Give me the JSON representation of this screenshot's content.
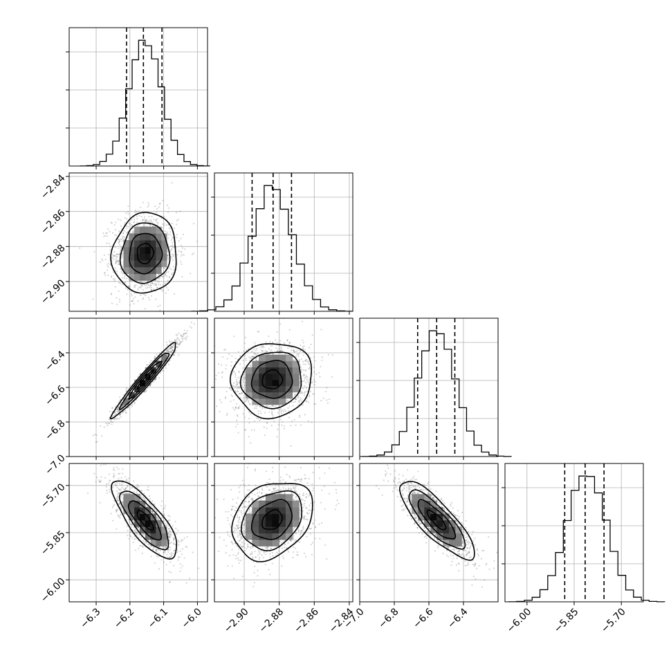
{
  "chart_data": {
    "type": "corner",
    "grid": true,
    "parameters": [
      {
        "mean": -6.155,
        "sd": 0.048,
        "lim": [
          -6.38,
          -5.97
        ],
        "ticks": [
          -6.3,
          -6.2,
          -6.1,
          -6.0
        ],
        "tick_labels": [
          "−6.3",
          "−6.2",
          "−6.1",
          "−6.0"
        ],
        "quantiles": [
          -6.21,
          -6.16,
          -6.105
        ]
      },
      {
        "mean": -2.884,
        "sd": 0.0115,
        "lim": [
          -2.917,
          -2.838
        ],
        "ticks": [
          -2.9,
          -2.88,
          -2.86,
          -2.84
        ],
        "tick_labels": [
          "−2.90",
          "−2.88",
          "−2.86",
          "−2.84"
        ],
        "quantiles": [
          -2.8955,
          -2.8835,
          -2.873
        ]
      },
      {
        "mean": -6.555,
        "sd": 0.108,
        "lim": [
          -7.0,
          -6.2
        ],
        "ticks": [
          -7.0,
          -6.8,
          -6.6,
          -6.4
        ],
        "tick_labels": [
          "−7.0",
          "−6.8",
          "−6.6",
          "−6.4"
        ],
        "quantiles": [
          -6.665,
          -6.555,
          -6.45
        ]
      },
      {
        "mean": -5.81,
        "sd": 0.062,
        "lim": [
          -6.07,
          -5.63
        ],
        "ticks": [
          -6.0,
          -5.85,
          -5.7
        ],
        "tick_labels": [
          "−6.00",
          "−5.85",
          "−5.70"
        ],
        "quantiles": [
          -5.88,
          -5.815,
          -5.755
        ]
      }
    ],
    "correlations": [
      {
        "i": 1,
        "j": 0,
        "rho": 0.05
      },
      {
        "i": 2,
        "j": 0,
        "rho": 0.97
      },
      {
        "i": 2,
        "j": 1,
        "rho": 0.05
      },
      {
        "i": 3,
        "j": 0,
        "rho": -0.78
      },
      {
        "i": 3,
        "j": 1,
        "rho": 0.28
      },
      {
        "i": 3,
        "j": 2,
        "rho": -0.82
      }
    ],
    "contour_levels_sigma": [
      0.5,
      1.0,
      1.5,
      2.0
    ],
    "histogram_bins": 20
  }
}
